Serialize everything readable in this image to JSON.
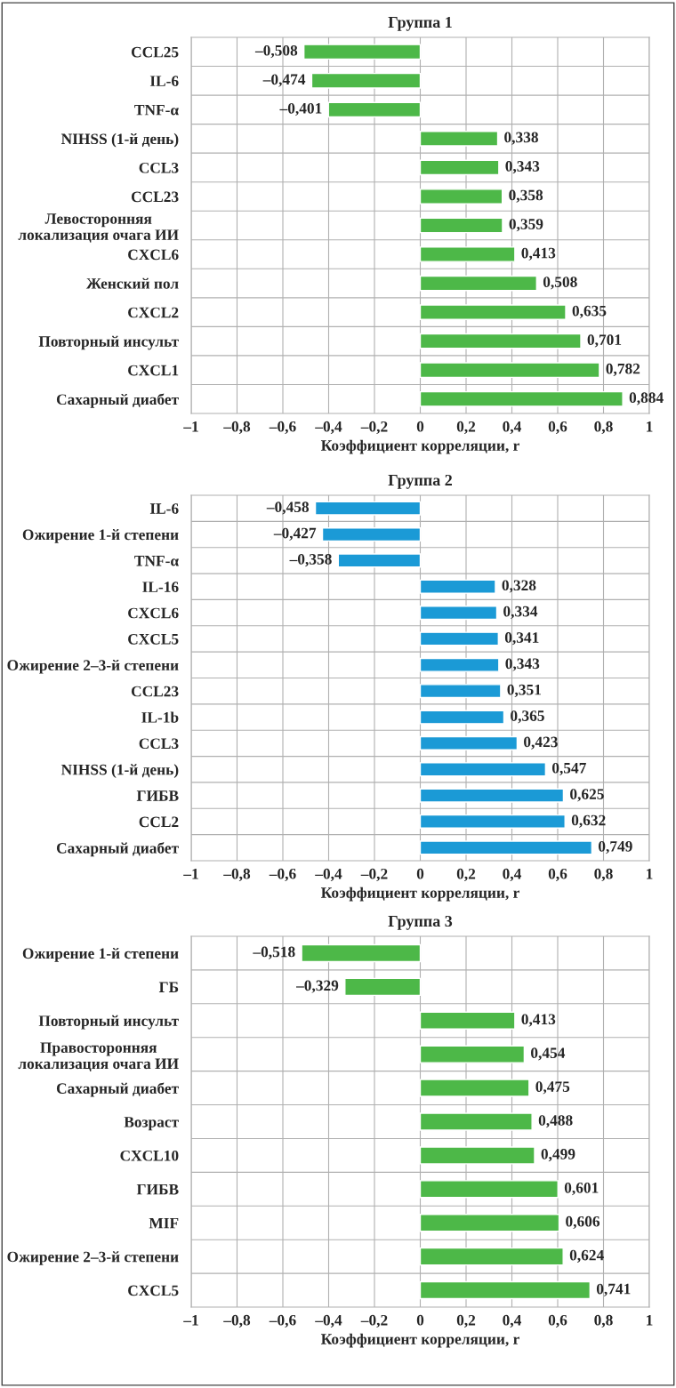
{
  "chart_data": [
    {
      "type": "bar",
      "orientation": "horizontal",
      "title": "Группа 1",
      "xlabel": "Коэффициент корреляции, r",
      "grid": true,
      "categories": [
        "CCL25",
        "IL-6",
        "TNF-α",
        "NIHSS (1-й день)",
        "CCL3",
        "CCL23",
        "Левосторонняя\nлокализация очага ИИ",
        "CXCL6",
        "Женский пол",
        "CXCL2",
        "Повторный инсульт",
        "CXCL1",
        "Сахарный диабет"
      ],
      "series": [
        {
          "color": "#4db848",
          "values": [
            -0.508,
            -0.474,
            -0.401,
            0.338,
            0.343,
            0.358,
            0.359,
            0.413,
            0.508,
            0.635,
            0.701,
            0.782,
            0.884
          ],
          "value_labels": [
            "–0,508",
            "–0,474",
            "–0,401",
            "0,338",
            "0,343",
            "0,358",
            "0,359",
            "0,413",
            "0,508",
            "0,635",
            "0,701",
            "0,782",
            "0,884"
          ]
        }
      ],
      "xlim": [
        -1,
        1
      ],
      "xticks": [
        {
          "value": -1,
          "label": "–1"
        },
        {
          "value": -0.8,
          "label": "–0,8"
        },
        {
          "value": -0.6,
          "label": "–0,6"
        },
        {
          "value": -0.4,
          "label": "–0,4"
        },
        {
          "value": -0.2,
          "label": "–0,2"
        },
        0,
        {
          "value": 0.2,
          "label": "0,2"
        },
        {
          "value": 0.4,
          "label": "0,4"
        },
        {
          "value": 0.6,
          "label": "0,6"
        },
        {
          "value": 0.8,
          "label": "0,8"
        },
        1
      ]
    },
    {
      "type": "bar",
      "orientation": "horizontal",
      "title": "Группа 2",
      "xlabel": "Коэффициент корреляции, r",
      "grid": true,
      "categories": [
        "IL-6",
        "Ожирение 1-й степени",
        "TNF-α",
        "IL-16",
        "CXCL6",
        "CXCL5",
        "Ожирение 2–3-й степени",
        "CCL23",
        "IL-1b",
        "CCL3",
        "NIHSS (1-й день)",
        "ГИБВ",
        "CCL2",
        "Сахарный диабет"
      ],
      "series": [
        {
          "color": "#1b9ad6",
          "values": [
            -0.458,
            -0.427,
            -0.358,
            0.328,
            0.334,
            0.341,
            0.343,
            0.351,
            0.365,
            0.423,
            0.547,
            0.625,
            0.632,
            0.749
          ],
          "value_labels": [
            "–0,458",
            "–0,427",
            "–0,358",
            "0,328",
            "0,334",
            "0,341",
            "0,343",
            "0,351",
            "0,365",
            "0,423",
            "0,547",
            "0,625",
            "0,632",
            "0,749"
          ]
        }
      ],
      "xlim": [
        -1,
        1
      ],
      "xticks": [
        {
          "value": -1,
          "label": "–1"
        },
        {
          "value": -0.8,
          "label": "–0,8"
        },
        {
          "value": -0.6,
          "label": "–0,6"
        },
        {
          "value": -0.4,
          "label": "–0,4"
        },
        {
          "value": -0.2,
          "label": "–0,2"
        },
        0,
        {
          "value": 0.2,
          "label": "0,2"
        },
        {
          "value": 0.4,
          "label": "0,4"
        },
        {
          "value": 0.6,
          "label": "0,6"
        },
        {
          "value": 0.8,
          "label": "0,8"
        },
        1
      ]
    },
    {
      "type": "bar",
      "orientation": "horizontal",
      "title": "Группа 3",
      "xlabel": "Коэффициент корреляции, r",
      "grid": true,
      "categories": [
        "Ожирение 1-й степени",
        "ГБ",
        "Повторный инсульт",
        "Правосторонняя\nлокализация очага ИИ",
        "Сахарный диабет",
        "Возраст",
        "CXCL10",
        "ГИБВ",
        "MIF",
        "Ожирение 2–3-й степени",
        "CXCL5"
      ],
      "series": [
        {
          "color": "#4db848",
          "values": [
            -0.518,
            -0.329,
            0.413,
            0.454,
            0.475,
            0.488,
            0.499,
            0.601,
            0.606,
            0.624,
            0.741
          ],
          "value_labels": [
            "–0,518",
            "–0,329",
            "0,413",
            "0,454",
            "0,475",
            "0,488",
            "0,499",
            "0,601",
            "0,606",
            "0,624",
            "0,741"
          ]
        }
      ],
      "xlim": [
        -1,
        1
      ],
      "xticks": [
        {
          "value": -1,
          "label": "–1"
        },
        {
          "value": -0.8,
          "label": "–0,8"
        },
        {
          "value": -0.6,
          "label": "–0,6"
        },
        {
          "value": -0.4,
          "label": "–0,4"
        },
        {
          "value": -0.2,
          "label": "–0,2"
        },
        0,
        {
          "value": 0.2,
          "label": "0,2"
        },
        {
          "value": 0.4,
          "label": "0,4"
        },
        {
          "value": 0.6,
          "label": "0,6"
        },
        {
          "value": 0.8,
          "label": "0,8"
        },
        1
      ]
    }
  ]
}
